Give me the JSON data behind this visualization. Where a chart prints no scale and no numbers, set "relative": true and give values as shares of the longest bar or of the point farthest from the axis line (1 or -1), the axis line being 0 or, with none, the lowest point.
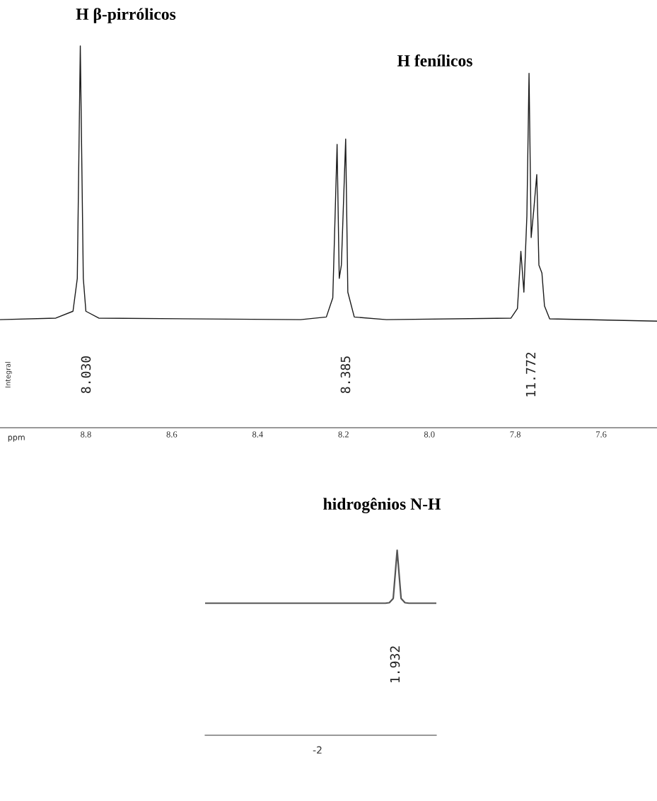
{
  "chart_data": [
    {
      "type": "line",
      "relative": true,
      "xlabel": "ppm",
      "xlim": [
        9.0,
        7.47
      ],
      "xticks": [
        8.8,
        8.6,
        8.4,
        8.2,
        {
          "value": 8.0,
          "label": "8.0"
        },
        7.8,
        7.6
      ],
      "tick_labels": "x",
      "series": [
        {
          "color": "#1a1a1a",
          "x": [
            9.0,
            8.87,
            8.83,
            8.82,
            8.813,
            8.806,
            8.8,
            8.77,
            8.3,
            8.24,
            8.225,
            8.215,
            8.21,
            8.205,
            8.195,
            8.19,
            8.175,
            8.1,
            7.81,
            7.795,
            7.787,
            7.78,
            7.773,
            7.768,
            7.763,
            7.757,
            7.75,
            7.745,
            7.738,
            7.732,
            7.72,
            7.47
          ],
          "values": [
            0.283,
            0.287,
            0.305,
            0.391,
            1.0,
            0.391,
            0.305,
            0.287,
            0.283,
            0.29,
            0.34,
            0.742,
            0.391,
            0.426,
            0.756,
            0.355,
            0.29,
            0.283,
            0.287,
            0.312,
            0.462,
            0.355,
            0.555,
            0.928,
            0.498,
            0.57,
            0.663,
            0.426,
            0.405,
            0.319,
            0.285,
            0.279
          ]
        }
      ],
      "annotations": [
        "H β-pirrólicos",
        "H fenílicos",
        "8.030",
        "8.385",
        "11.772",
        "Integral"
      ]
    },
    {
      "type": "line",
      "relative": true,
      "tick_labels": false,
      "categories": [
        null,
        null,
        null,
        null,
        null,
        null,
        null,
        null,
        null,
        null,
        null,
        null,
        null,
        null,
        null,
        null,
        null,
        null,
        null,
        null,
        null,
        null,
        null,
        null,
        null,
        null,
        null,
        null,
        null,
        null,
        null,
        null,
        null,
        null,
        null,
        null,
        null,
        null,
        null,
        null,
        null,
        null,
        null,
        null,
        null,
        null,
        null,
        null,
        null,
        null,
        null,
        null,
        null,
        null,
        null,
        null,
        null,
        null,
        null,
        null
      ],
      "series": [
        {
          "color": "#555555",
          "values": [
            0.714,
            0.714,
            0.714,
            0.714,
            0.714,
            0.714,
            0.714,
            0.714,
            0.714,
            0.714,
            0.714,
            0.714,
            0.714,
            0.714,
            0.714,
            0.714,
            0.714,
            0.714,
            0.714,
            0.714,
            0.714,
            0.714,
            0.714,
            0.714,
            0.714,
            0.714,
            0.714,
            0.714,
            0.714,
            0.714,
            0.714,
            0.714,
            0.714,
            0.714,
            0.714,
            0.714,
            0.714,
            0.714,
            0.714,
            0.714,
            0.714,
            0.714,
            0.714,
            0.714,
            0.714,
            0.714,
            0.714,
            0.717,
            0.74,
            1.0,
            0.74,
            0.717,
            0.714,
            0.714,
            0.714,
            0.714,
            0.714,
            0.714,
            0.714,
            0.714
          ]
        }
      ],
      "annotations": [
        "hidrogênios N-H",
        "1.932",
        "-2"
      ]
    }
  ]
}
